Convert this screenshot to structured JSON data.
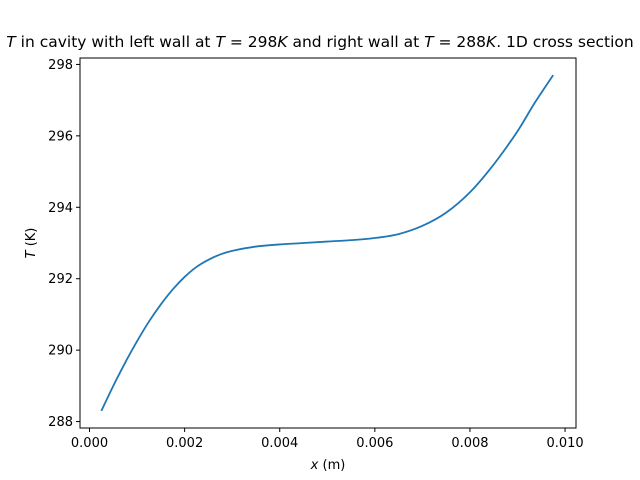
{
  "chart_data": {
    "type": "line",
    "title_parts": [
      {
        "text": "T",
        "italic": true
      },
      {
        "text": " in cavity with left wall at ",
        "italic": false
      },
      {
        "text": "T",
        "italic": true
      },
      {
        "text": " = 298",
        "italic": false
      },
      {
        "text": "K",
        "italic": true
      },
      {
        "text": " and right wall at ",
        "italic": false
      },
      {
        "text": "T",
        "italic": true
      },
      {
        "text": " = 288",
        "italic": false
      },
      {
        "text": "K",
        "italic": true
      },
      {
        "text": ". 1D cross section",
        "italic": false
      }
    ],
    "xlabel_parts": [
      {
        "text": "x",
        "italic": true
      },
      {
        "text": " (m)",
        "italic": false
      }
    ],
    "ylabel_parts": [
      {
        "text": "T",
        "italic": true
      },
      {
        "text": " (K)",
        "italic": false
      }
    ],
    "xlim": [
      -0.0002,
      0.01023
    ],
    "ylim": [
      287.82,
      298.18
    ],
    "xticks": [
      0.0,
      0.002,
      0.004,
      0.006,
      0.008,
      0.01
    ],
    "xtick_labels": [
      "0.000",
      "0.002",
      "0.004",
      "0.006",
      "0.008",
      "0.010"
    ],
    "yticks": [
      288,
      290,
      292,
      294,
      296,
      298
    ],
    "ytick_labels": [
      "288",
      "290",
      "292",
      "294",
      "296",
      "298"
    ],
    "grid": false,
    "series": [
      {
        "color": "#1f77b4",
        "x": [
          0.00025,
          0.0005,
          0.00075,
          0.001,
          0.00125,
          0.0015,
          0.00175,
          0.002,
          0.00225,
          0.0025,
          0.00275,
          0.003,
          0.0035,
          0.004,
          0.0045,
          0.005,
          0.0055,
          0.006,
          0.0065,
          0.007,
          0.0075,
          0.008,
          0.0085,
          0.009,
          0.00935,
          0.00975
        ],
        "y": [
          288.3,
          289.0,
          289.65,
          290.25,
          290.8,
          291.28,
          291.7,
          292.05,
          292.33,
          292.53,
          292.68,
          292.78,
          292.9,
          292.96,
          293.0,
          293.04,
          293.08,
          293.14,
          293.25,
          293.48,
          293.85,
          294.42,
          295.2,
          296.13,
          296.9,
          297.7
        ]
      }
    ]
  }
}
